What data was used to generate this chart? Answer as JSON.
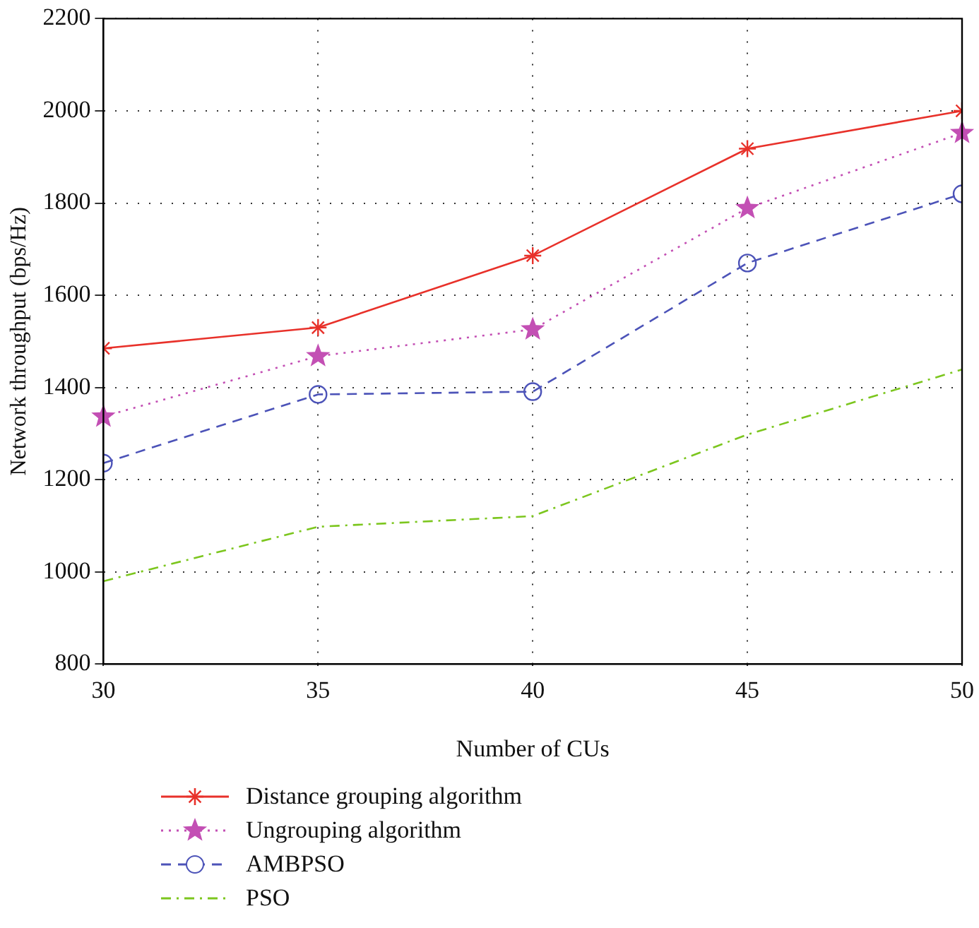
{
  "chart_data": {
    "type": "line",
    "xlabel": "Number of CUs",
    "ylabel": "Network throughput (bps/Hz)",
    "x": [
      30,
      35,
      40,
      45,
      50
    ],
    "xlim": [
      30,
      50
    ],
    "xticks": [
      30,
      35,
      40,
      45,
      50
    ],
    "ylim": [
      800,
      2200
    ],
    "yticks": [
      800,
      1000,
      1200,
      1400,
      1600,
      1800,
      2000,
      2200
    ],
    "grid": true,
    "legend": "bottom",
    "series": [
      {
        "name": "Distance grouping algorithm",
        "color": "#e8312a",
        "marker": "cross",
        "line_style": "solid",
        "values": [
          1485,
          1530,
          1686,
          1918,
          2000
        ]
      },
      {
        "name": "Ungrouping algorithm",
        "color": "#c34fb4",
        "marker": "star",
        "line_style": "dotted",
        "values": [
          1337,
          1468,
          1526,
          1789,
          1952
        ]
      },
      {
        "name": "AMBPSO",
        "color": "#4c53b8",
        "marker": "circle",
        "line_style": "dashed",
        "values": [
          1236,
          1385,
          1391,
          1670,
          1820
        ]
      },
      {
        "name": "PSO",
        "color": "#7cc61e",
        "marker": "none",
        "line_style": "dashdot",
        "values": [
          980,
          1098,
          1121,
          1298,
          1439
        ]
      }
    ]
  }
}
